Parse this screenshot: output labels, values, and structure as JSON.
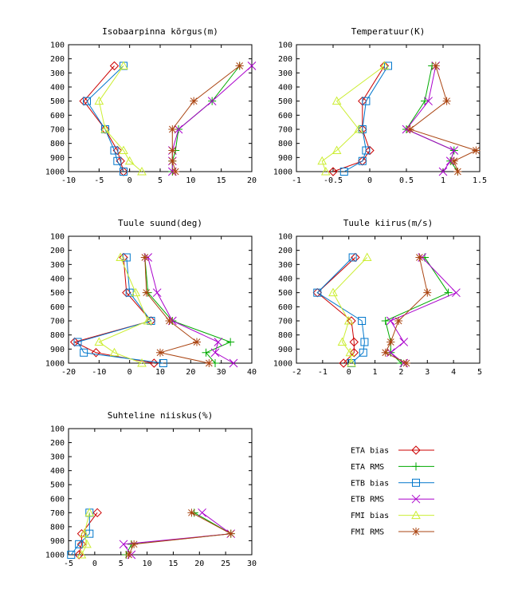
{
  "legend": [
    {
      "key": "eta_bias",
      "label": "ETA bias",
      "color": "#cc0000",
      "marker": "diamond"
    },
    {
      "key": "eta_rms",
      "label": "ETA RMS",
      "color": "#00aa00",
      "marker": "plus"
    },
    {
      "key": "etb_bias",
      "label": "ETB bias",
      "color": "#0077cc",
      "marker": "square"
    },
    {
      "key": "etb_rms",
      "label": "ETB RMS",
      "color": "#aa00cc",
      "marker": "cross"
    },
    {
      "key": "fmi_bias",
      "label": "FMI bias",
      "color": "#ccee33",
      "marker": "triangle"
    },
    {
      "key": "fmi_rms",
      "label": "FMI RMS",
      "color": "#aa4411",
      "marker": "star"
    }
  ],
  "chart_data": [
    {
      "type": "line",
      "title": "Isobaarpinna kõrgus(m)",
      "xlim": [
        -10,
        20
      ],
      "xticks": [
        -10,
        -5,
        0,
        5,
        10,
        15,
        20
      ],
      "ylim": [
        100,
        1000
      ],
      "yticks": [
        100,
        200,
        300,
        400,
        500,
        600,
        700,
        800,
        900,
        1000
      ],
      "y_inverted": true,
      "series": [
        {
          "key": "eta_bias",
          "y": [
            250,
            500,
            700,
            850,
            925,
            1000
          ],
          "x": [
            -2.5,
            -7.5,
            -4,
            -2,
            -1.5,
            -1
          ]
        },
        {
          "key": "eta_rms",
          "y": [
            250,
            500,
            700,
            850,
            925,
            1000
          ],
          "x": [
            18,
            13.5,
            8,
            7.5,
            7,
            7
          ]
        },
        {
          "key": "etb_bias",
          "y": [
            250,
            500,
            700,
            850,
            925,
            1000
          ],
          "x": [
            -1,
            -7,
            -4,
            -2.5,
            -2,
            -1
          ]
        },
        {
          "key": "etb_rms",
          "y": [
            250,
            500,
            700,
            850,
            925,
            1000
          ],
          "x": [
            20,
            13.5,
            8,
            7,
            7,
            7
          ]
        },
        {
          "key": "fmi_bias",
          "y": [
            250,
            500,
            700,
            850,
            925,
            1000
          ],
          "x": [
            -1,
            -5,
            -4,
            -1,
            0,
            2
          ]
        },
        {
          "key": "fmi_rms",
          "y": [
            250,
            500,
            700,
            850,
            925,
            1000
          ],
          "x": [
            18,
            10.5,
            7,
            7,
            7,
            7.5
          ]
        }
      ]
    },
    {
      "type": "line",
      "title": "Temperatuur(K)",
      "xlim": [
        -1,
        1.5
      ],
      "xticks": [
        -1,
        -0.5,
        0,
        0.5,
        1,
        1.5
      ],
      "ylim": [
        100,
        1000
      ],
      "yticks": [
        100,
        200,
        300,
        400,
        500,
        600,
        700,
        800,
        900,
        1000
      ],
      "y_inverted": true,
      "series": [
        {
          "key": "eta_bias",
          "y": [
            250,
            500,
            700,
            850,
            925,
            1000
          ],
          "x": [
            0.2,
            -0.1,
            -0.1,
            0,
            -0.1,
            -0.5
          ]
        },
        {
          "key": "eta_rms",
          "y": [
            250,
            500,
            700,
            850,
            925,
            1000
          ],
          "x": [
            0.85,
            0.75,
            0.5,
            1.15,
            1.1,
            1.2
          ]
        },
        {
          "key": "etb_bias",
          "y": [
            250,
            500,
            700,
            850,
            925,
            1000
          ],
          "x": [
            0.25,
            -0.05,
            -0.1,
            -0.05,
            -0.1,
            -0.35
          ]
        },
        {
          "key": "etb_rms",
          "y": [
            250,
            500,
            700,
            850,
            925,
            1000
          ],
          "x": [
            0.9,
            0.8,
            0.5,
            1.15,
            1.1,
            1.0
          ]
        },
        {
          "key": "fmi_bias",
          "y": [
            250,
            500,
            700,
            850,
            925,
            1000
          ],
          "x": [
            0.2,
            -0.45,
            -0.15,
            -0.45,
            -0.65,
            -0.6
          ]
        },
        {
          "key": "fmi_rms",
          "y": [
            250,
            500,
            700,
            850,
            925,
            1000
          ],
          "x": [
            0.9,
            1.05,
            0.55,
            1.45,
            1.15,
            1.2
          ]
        }
      ]
    },
    {
      "type": "line",
      "title": "Tuule suund(deg)",
      "xlim": [
        -20,
        40
      ],
      "xticks": [
        -20,
        -10,
        0,
        10,
        20,
        30,
        40
      ],
      "ylim": [
        100,
        1000
      ],
      "yticks": [
        100,
        200,
        300,
        400,
        500,
        600,
        700,
        800,
        900,
        1000
      ],
      "y_inverted": true,
      "series": [
        {
          "key": "eta_bias",
          "y": [
            250,
            500,
            700,
            850,
            925,
            1000
          ],
          "x": [
            -2,
            -1,
            7,
            -18,
            -11,
            8
          ]
        },
        {
          "key": "eta_rms",
          "y": [
            250,
            500,
            700,
            850,
            925,
            1000
          ],
          "x": [
            5,
            6,
            14,
            33,
            25,
            28
          ]
        },
        {
          "key": "etb_bias",
          "y": [
            250,
            500,
            700,
            850,
            925,
            1000
          ],
          "x": [
            -1,
            0,
            7,
            -17,
            -15,
            11
          ]
        },
        {
          "key": "etb_rms",
          "y": [
            250,
            500,
            700,
            850,
            925,
            1000
          ],
          "x": [
            6,
            9,
            14,
            29,
            28,
            34
          ]
        },
        {
          "key": "fmi_bias",
          "y": [
            250,
            500,
            700,
            850,
            925,
            1000
          ],
          "x": [
            -3,
            2,
            6,
            -10,
            -5,
            4
          ]
        },
        {
          "key": "fmi_rms",
          "y": [
            250,
            500,
            700,
            850,
            925,
            1000
          ],
          "x": [
            5,
            5.5,
            13,
            22,
            10,
            26
          ]
        }
      ]
    },
    {
      "type": "line",
      "title": "Tuule kiirus(m/s)",
      "xlim": [
        -2,
        5
      ],
      "xticks": [
        -2,
        -1,
        0,
        1,
        2,
        3,
        4,
        5
      ],
      "ylim": [
        100,
        1000
      ],
      "yticks": [
        100,
        200,
        300,
        400,
        500,
        600,
        700,
        800,
        900,
        1000
      ],
      "y_inverted": true,
      "series": [
        {
          "key": "eta_bias",
          "y": [
            250,
            500,
            700,
            850,
            925,
            1000
          ],
          "x": [
            0.25,
            -1.2,
            0.1,
            0.2,
            0.2,
            -0.2
          ]
        },
        {
          "key": "eta_rms",
          "y": [
            250,
            500,
            700,
            850,
            925,
            1000
          ],
          "x": [
            2.9,
            3.8,
            1.4,
            1.6,
            1.6,
            2.0
          ]
        },
        {
          "key": "etb_bias",
          "y": [
            250,
            500,
            700,
            850,
            925,
            1000
          ],
          "x": [
            0.15,
            -1.2,
            0.5,
            0.6,
            0.55,
            0.1
          ]
        },
        {
          "key": "etb_rms",
          "y": [
            250,
            500,
            700,
            850,
            925,
            1000
          ],
          "x": [
            2.8,
            4.1,
            1.6,
            2.1,
            1.6,
            2.1
          ]
        },
        {
          "key": "fmi_bias",
          "y": [
            250,
            500,
            700,
            850,
            925,
            1000
          ],
          "x": [
            0.7,
            -0.6,
            0,
            -0.25,
            0.05,
            0.1
          ]
        },
        {
          "key": "fmi_rms",
          "y": [
            250,
            500,
            700,
            850,
            925,
            1000
          ],
          "x": [
            2.7,
            3.0,
            1.9,
            1.6,
            1.4,
            2.2
          ]
        }
      ]
    },
    {
      "type": "line",
      "title": "Suhteline niiskus(%)",
      "xlim": [
        -5,
        30
      ],
      "xticks": [
        -5,
        0,
        5,
        10,
        15,
        20,
        25,
        30
      ],
      "ylim": [
        100,
        1000
      ],
      "yticks": [
        100,
        200,
        300,
        400,
        500,
        600,
        700,
        800,
        900,
        1000
      ],
      "y_inverted": true,
      "series": [
        {
          "key": "eta_bias",
          "y": [
            700,
            850,
            925,
            1000
          ],
          "x": [
            0.5,
            -2.5,
            -2.5,
            -3
          ]
        },
        {
          "key": "eta_rms",
          "y": [
            700,
            850,
            925,
            1000
          ],
          "x": [
            19,
            26,
            7,
            6
          ]
        },
        {
          "key": "etb_bias",
          "y": [
            700,
            850,
            925,
            1000
          ],
          "x": [
            -1,
            -1,
            -3,
            -4.5
          ]
        },
        {
          "key": "etb_rms",
          "y": [
            700,
            850,
            925,
            1000
          ],
          "x": [
            20.5,
            26,
            5.5,
            7
          ]
        },
        {
          "key": "fmi_bias",
          "y": [
            700,
            850,
            925,
            1000
          ],
          "x": [
            -1,
            -2,
            -1.5,
            -2.5
          ]
        },
        {
          "key": "fmi_rms",
          "y": [
            700,
            850,
            925,
            1000
          ],
          "x": [
            18.5,
            26,
            7.5,
            6.5
          ]
        }
      ]
    }
  ]
}
